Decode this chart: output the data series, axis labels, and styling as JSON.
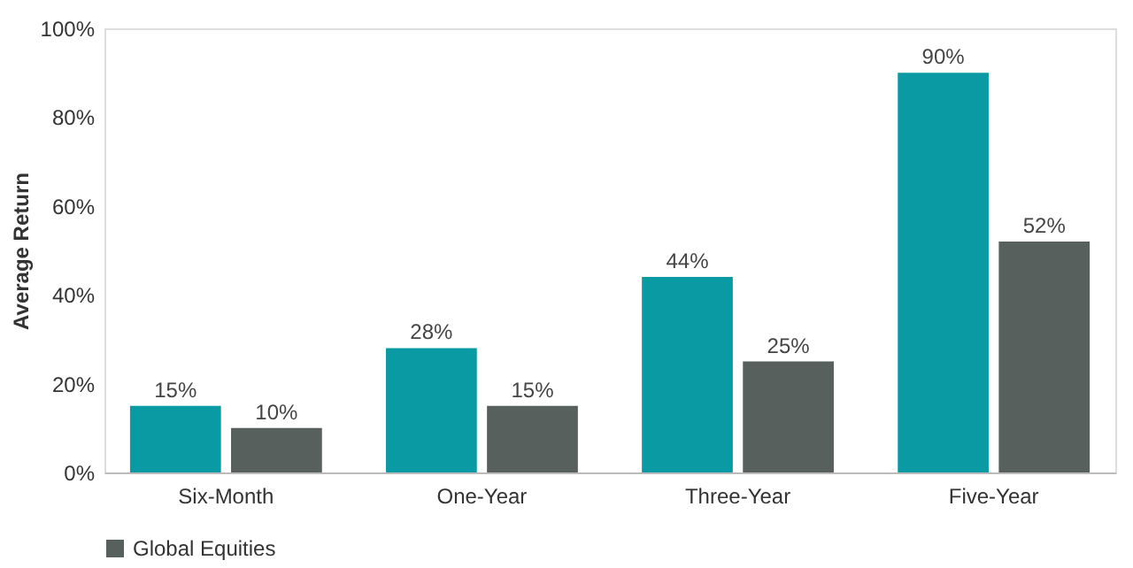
{
  "chart_data": {
    "type": "bar",
    "ylabel": "Average Return",
    "categories": [
      "Six-Month",
      "One-Year",
      "Three-Year",
      "Five-Year"
    ],
    "series": [
      {
        "color": "#0a9aa3",
        "values": [
          15,
          28,
          44,
          90
        ],
        "value_labels": [
          "15%",
          "28%",
          "44%",
          "90%"
        ]
      },
      {
        "name": "Global Equities",
        "color": "#58605d",
        "values": [
          10,
          15,
          25,
          52
        ],
        "value_labels": [
          "10%",
          "15%",
          "25%",
          "52%"
        ]
      }
    ],
    "ylim": [
      0,
      100
    ],
    "yticks": [
      {
        "value": 0,
        "label": "0%"
      },
      {
        "value": 20,
        "label": "20%"
      },
      {
        "value": 40,
        "label": "40%"
      },
      {
        "value": 60,
        "label": "60%"
      },
      {
        "value": 80,
        "label": "80%"
      },
      {
        "value": 100,
        "label": "100%"
      }
    ],
    "grid": false,
    "legend": "bottom"
  }
}
